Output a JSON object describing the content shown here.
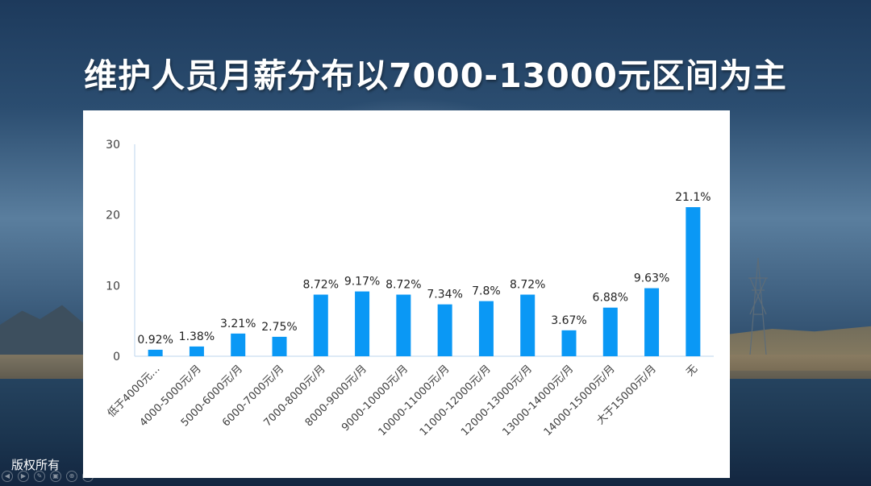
{
  "slide": {
    "title": "维护人员月薪分布以7000-13000元区间为主",
    "copyright": "版权所有"
  },
  "colors": {
    "bar": "#0a98f5",
    "axis": "#bcd6ee",
    "tick_text": "#404040",
    "label_text": "#222222"
  },
  "chart_data": {
    "type": "bar",
    "title": "",
    "xlabel": "",
    "ylabel": "",
    "ylim": [
      0,
      30
    ],
    "yticks": [
      "0",
      "10",
      "20",
      "30"
    ],
    "ytick_values": [
      0,
      10,
      20,
      30
    ],
    "grid": false,
    "categories": [
      "低于4000元…",
      "4000-5000元/月",
      "5000-6000元/月",
      "6000-7000元/月",
      "7000-8000元/月",
      "8000-9000元/月",
      "9000-10000元/月",
      "10000-11000元/月",
      "11000-12000元/月",
      "12000-13000元/月",
      "13000-14000元/月",
      "14000-15000元/月",
      "大于15000元/月",
      "无"
    ],
    "values": [
      0.92,
      1.38,
      3.21,
      2.75,
      8.72,
      9.17,
      8.72,
      7.34,
      7.8,
      8.72,
      3.67,
      6.88,
      9.63,
      21.1
    ],
    "data_labels": [
      "0.92%",
      "1.38%",
      "3.21%",
      "2.75%",
      "8.72%",
      "9.17%",
      "8.72%",
      "7.34%",
      "7.8%",
      "8.72%",
      "3.67%",
      "6.88%",
      "9.63%",
      "21.1%"
    ]
  },
  "controls": [
    "prev-icon",
    "next-icon",
    "pen-icon",
    "slides-icon",
    "zoom-icon",
    "more-icon"
  ]
}
